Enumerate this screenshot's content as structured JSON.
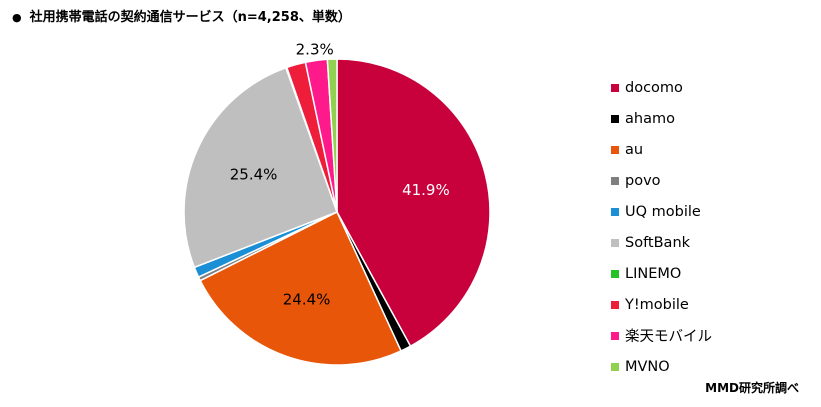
{
  "title": "社用携帯電話の契約通信サービス（n=4,258、単数）",
  "bullet": "●",
  "source": "MMD研究所調べ",
  "chart_data": {
    "type": "pie",
    "title": "社用携帯電話の契約通信サービス（n=4,258、単数）",
    "categories": [
      "docomo",
      "ahamo",
      "au",
      "povo",
      "UQ mobile",
      "SoftBank",
      "LINEMO",
      "Y!mobile",
      "楽天モバイル",
      "MVNO"
    ],
    "values": [
      41.9,
      1.1,
      24.4,
      0.4,
      1.1,
      25.4,
      0.1,
      2.0,
      2.3,
      1.0
    ],
    "colors": [
      "#c8003c",
      "#000000",
      "#e8560a",
      "#7f7f7f",
      "#1a8fd6",
      "#bfbfbf",
      "#22c322",
      "#ee1d3a",
      "#ff1a8c",
      "#92d050"
    ],
    "data_labels": [
      "41.9%",
      "",
      "24.4%",
      "",
      "",
      "25.4%",
      "",
      "",
      "2.3%",
      ""
    ],
    "label_colors": [
      "#ffffff",
      "",
      "#000000",
      "",
      "",
      "#000000",
      "",
      "",
      "#000000",
      ""
    ],
    "start_angle": 0,
    "direction": "clockwise",
    "legend_position": "right"
  }
}
